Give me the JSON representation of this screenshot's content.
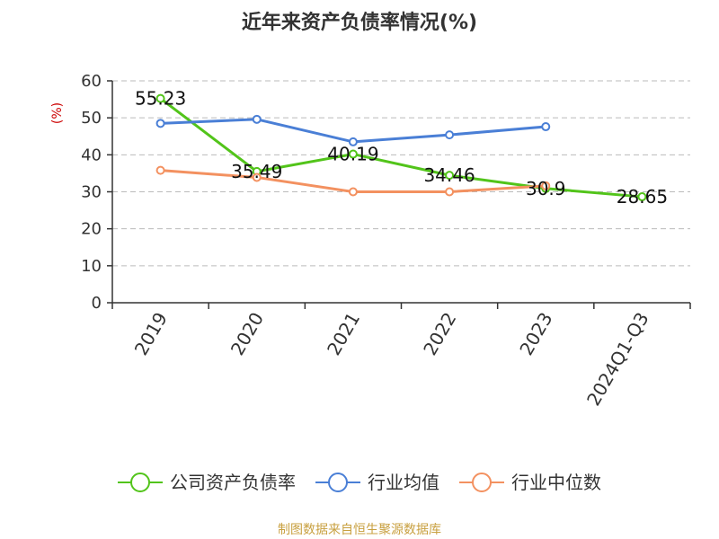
{
  "colors": {
    "axis": "#333333",
    "grid": "#bbbbbb",
    "unit": "#cc0000",
    "source": "#c8a040",
    "marker_fill": "#ffffff"
  },
  "chart_data": {
    "type": "line",
    "title": "近年来资产负债率情况(%)",
    "ylabel": "(%)",
    "categories": [
      "2019",
      "2020",
      "2021",
      "2022",
      "2023",
      "2024Q1-Q3"
    ],
    "ylim": [
      0,
      60
    ],
    "yticks": [
      0,
      10,
      20,
      30,
      40,
      50,
      60
    ],
    "grid": true,
    "legend_position": "bottom",
    "series": [
      {
        "name": "公司资产负债率",
        "color": "#52c41a",
        "values": [
          55.23,
          35.49,
          40.19,
          34.46,
          30.9,
          28.65
        ],
        "labels": [
          "55.23",
          "35.49",
          "40.19",
          "34.46",
          "30.9",
          "28.65"
        ]
      },
      {
        "name": "行业均值",
        "color": "#4a7fd6",
        "values": [
          48.5,
          49.6,
          43.5,
          45.4,
          47.6,
          null
        ]
      },
      {
        "name": "行业中位数",
        "color": "#f39160",
        "values": [
          35.8,
          33.9,
          30.0,
          30.0,
          31.6,
          null
        ]
      }
    ]
  },
  "footer": {
    "source": "制图数据来自恒生聚源数据库"
  }
}
